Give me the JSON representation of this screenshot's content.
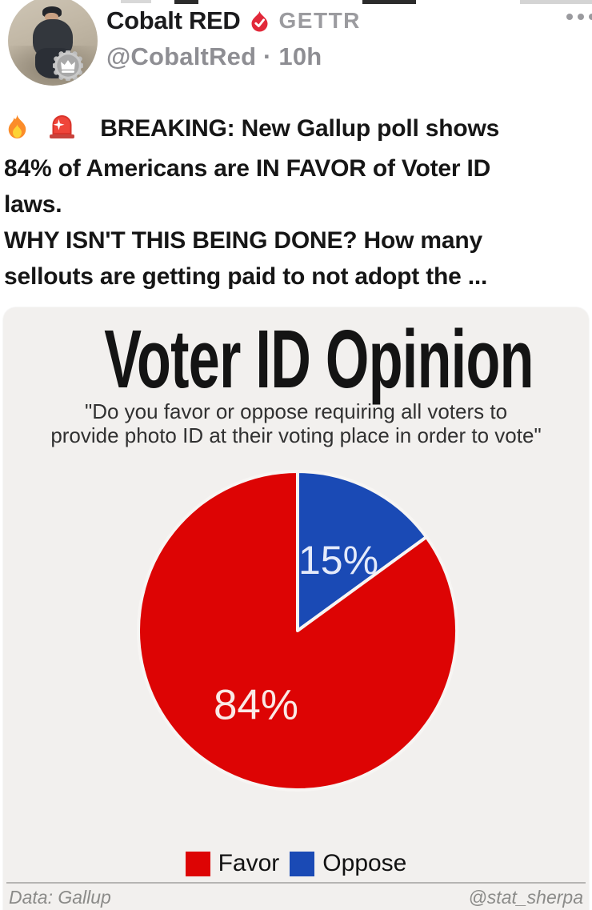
{
  "header": {
    "author": "Cobalt RED",
    "platform": "GETTR",
    "handle_line": "@CobaltRed · 10h",
    "verified_badge_color": "#e2293a",
    "premium_badge": "crown"
  },
  "post": {
    "lines": [
      {
        "icons": [
          "fire-icon",
          "siren-icon"
        ],
        "text": "BREAKING: New Gallup poll shows"
      },
      {
        "text": "84% of Americans are IN FAVOR of Voter ID"
      },
      {
        "text": "laws."
      },
      {
        "text": "WHY ISN'T THIS BEING DONE? How many"
      },
      {
        "text": "sellouts are getting paid to not adopt the ..."
      }
    ]
  },
  "chart_data": {
    "type": "pie",
    "title": "Voter ID Opinion",
    "subtitle_line1": "\"Do you favor or oppose requiring all voters to",
    "subtitle_line2": "provide photo ID at their voting place in order to vote\"",
    "categories": [
      "Favor",
      "Oppose"
    ],
    "values": [
      84,
      15
    ],
    "slice_labels": [
      "84%",
      "15%"
    ],
    "colors": {
      "favor": "#dd0404",
      "oppose": "#1a4ab5",
      "slice_border": "#f7f5f3"
    },
    "start_angle_deg": 0,
    "legend_position": "bottom",
    "source": "Data: Gallup",
    "credit": "@stat_sherpa"
  }
}
